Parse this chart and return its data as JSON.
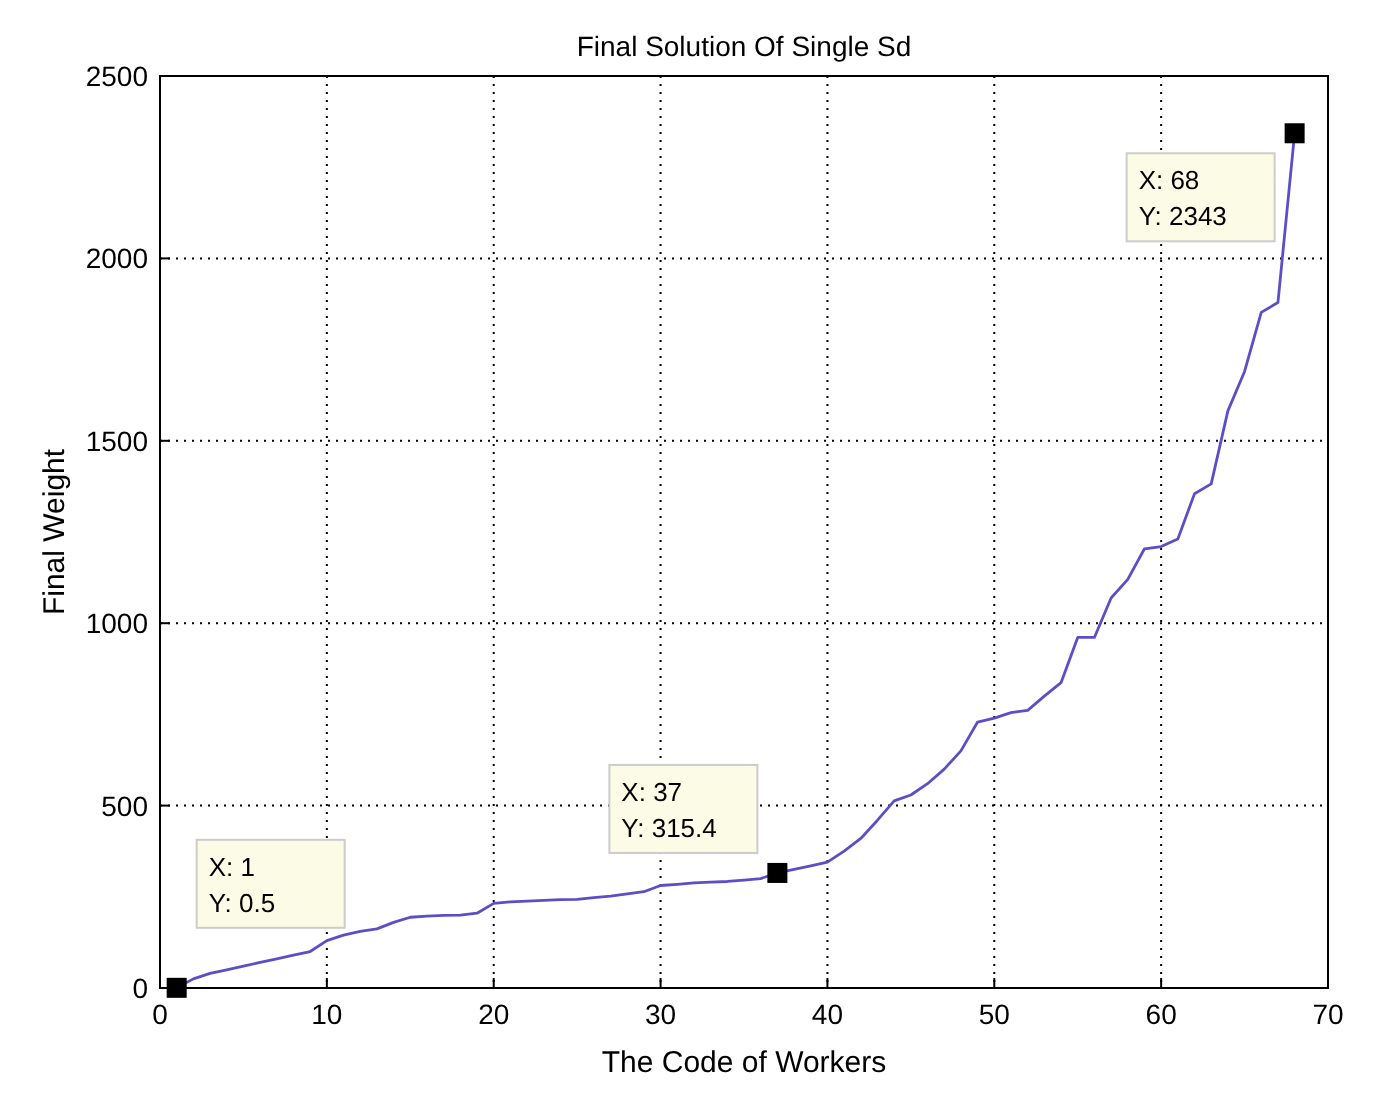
{
  "chart_data": {
    "type": "line",
    "title": "Final Solution Of Single Sd",
    "xlabel": "The Code of Workers",
    "ylabel": "Final Weight",
    "x": [
      1,
      2,
      3,
      4,
      5,
      6,
      7,
      8,
      9,
      10,
      11,
      12,
      13,
      14,
      15,
      16,
      17,
      18,
      19,
      20,
      21,
      22,
      23,
      24,
      25,
      26,
      27,
      28,
      29,
      30,
      31,
      32,
      33,
      34,
      35,
      36,
      37,
      38,
      39,
      40,
      41,
      42,
      43,
      44,
      45,
      46,
      47,
      48,
      49,
      50,
      51,
      52,
      53,
      54,
      55,
      56,
      57,
      58,
      59,
      60,
      61,
      62,
      63,
      64,
      65,
      66,
      67,
      68
    ],
    "series": [
      {
        "color": "#5b4fc8",
        "values": [
          0.5,
          25,
          40,
          50,
          60,
          70,
          80,
          90,
          100,
          130,
          145,
          155,
          162,
          180,
          194,
          197,
          199,
          200,
          205,
          232,
          236,
          238,
          240,
          242,
          243,
          248,
          252,
          258,
          264,
          281,
          284,
          288,
          290,
          292,
          296,
          300,
          315.4,
          325,
          335,
          345,
          375,
          410,
          460,
          513,
          529,
          560,
          600,
          650,
          729,
          740,
          755,
          761,
          800,
          837,
          961,
          961,
          1069,
          1120,
          1204,
          1210,
          1231,
          1355,
          1382,
          1582,
          1690,
          1852,
          1879,
          2343
        ]
      }
    ],
    "xlim": [
      0,
      70
    ],
    "xticks": [
      0,
      10,
      20,
      30,
      40,
      50,
      60,
      70
    ],
    "ylim": [
      0,
      2500
    ],
    "yticks": [
      0,
      500,
      1000,
      1500,
      2000,
      2500
    ],
    "grid": true,
    "marker": "none",
    "line_style": "solid",
    "annotations": [
      {
        "text": "X: 1\nY: 0.5",
        "x": 1,
        "y": 0.5
      },
      {
        "text": "X: 37\nY: 315.4",
        "x": 37,
        "y": 315.4
      },
      {
        "text": "X: 68\nY: 2343",
        "x": 68,
        "y": 2343
      }
    ]
  }
}
